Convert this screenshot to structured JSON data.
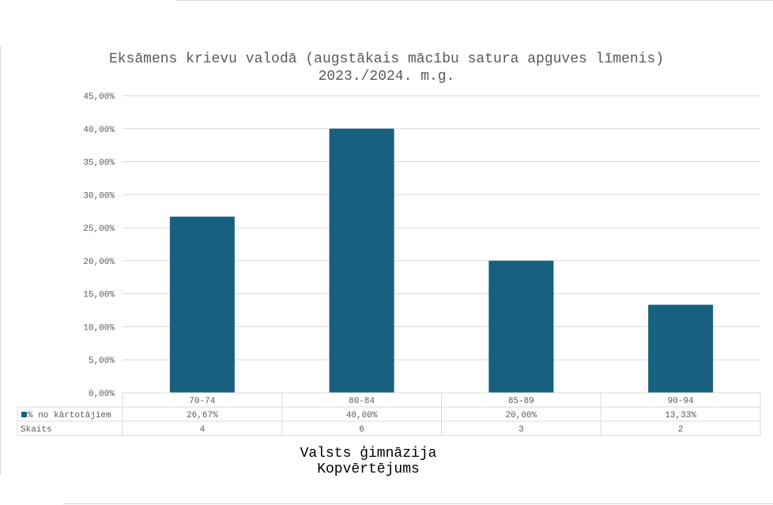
{
  "chart_data": {
    "type": "bar",
    "title": [
      "Eksāmens krievu valodā (augstākais mācību satura apguves līmenis)",
      "2023./2024. m.g."
    ],
    "categories": [
      "70-74",
      "80-84",
      "85-89",
      "90-94"
    ],
    "series": [
      {
        "name": "% no kārtotājiem",
        "values": [
          26.67,
          40.0,
          20.0,
          13.33
        ],
        "labels": [
          "26,67%",
          "40,00%",
          "20,00%",
          "13,33%"
        ],
        "color": "#17607f"
      }
    ],
    "table_rows": [
      {
        "label": "% no kārtotājiem",
        "values": [
          "26,67%",
          "40,00%",
          "20,00%",
          "13,33%"
        ],
        "legend_color": "#17607f"
      },
      {
        "label": "Skaits",
        "values": [
          "4",
          "6",
          "3",
          "2"
        ]
      }
    ],
    "y_ticks": [
      "0,00%",
      "5,00%",
      "10,00%",
      "15,00%",
      "20,00%",
      "25,00%",
      "30,00%",
      "35,00%",
      "40,00%",
      "45,00%"
    ],
    "ylim": [
      0,
      45
    ],
    "x_title": [
      "Valsts ģimnāzija",
      "Kopvērtējums"
    ],
    "grid": true,
    "legend": "data-table"
  }
}
